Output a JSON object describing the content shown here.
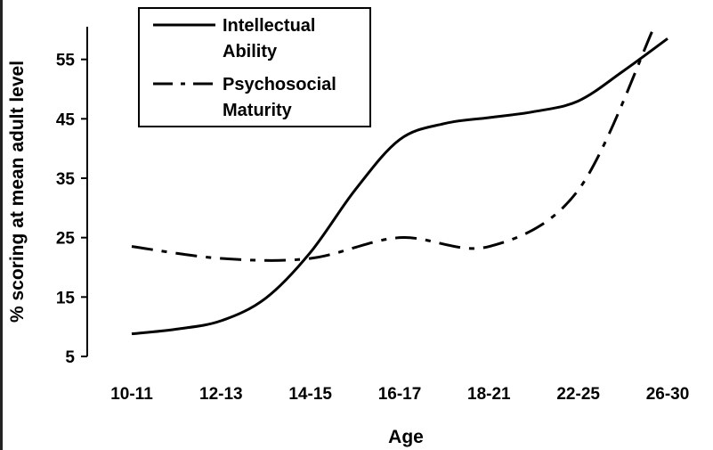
{
  "chart_data": {
    "type": "line",
    "xlabel": "Age",
    "ylabel": "% scoring at mean adult level",
    "categories": [
      "10-11",
      "12-13",
      "14-15",
      "16-17",
      "18-21",
      "22-25",
      "26-30"
    ],
    "yticks": [
      5,
      15,
      25,
      35,
      45,
      55
    ],
    "ylim": [
      5,
      60.5
    ],
    "grid": false,
    "legend_position": "top-left",
    "series": [
      {
        "name_lines": [
          "Intellectual",
          "Ability"
        ],
        "style": "solid",
        "color": "#000000",
        "x": [
          0,
          0.5,
          1,
          1.5,
          2,
          2.5,
          3,
          3.5,
          4,
          4.5,
          5,
          5.5,
          6
        ],
        "values": [
          8.8,
          9.6,
          11.0,
          14.8,
          22.5,
          33.0,
          41.5,
          44.2,
          45.2,
          46.2,
          48.0,
          53.0,
          58.5
        ]
      },
      {
        "name_lines": [
          "Psychosocial",
          "Maturity"
        ],
        "style": "dash-dot",
        "color": "#000000",
        "x": [
          0,
          1,
          2,
          3,
          4,
          5,
          5.85
        ],
        "values": [
          23.5,
          21.5,
          21.5,
          25.0,
          23.5,
          33.0,
          60.5
        ]
      }
    ]
  }
}
